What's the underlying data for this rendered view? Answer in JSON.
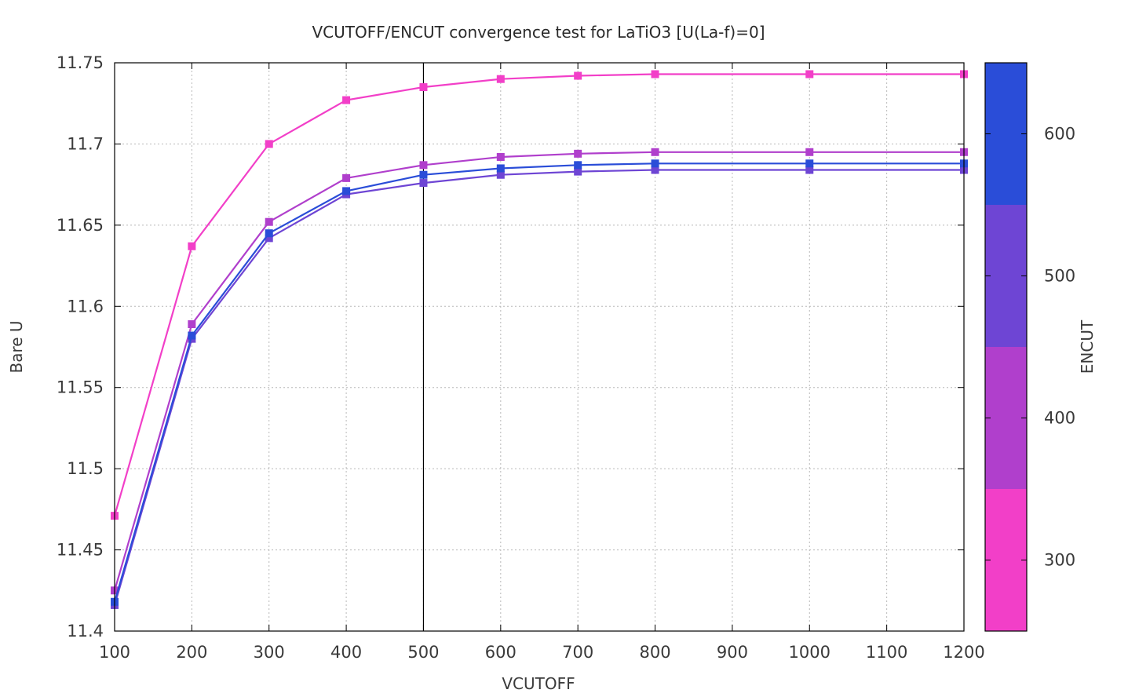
{
  "chart_data": {
    "type": "line",
    "title": "VCUTOFF/ENCUT convergence test for LaTiO3 [U(La-f)=0]",
    "xlabel": "VCUTOFF",
    "ylabel": "Bare U",
    "xlim": [
      100,
      1200
    ],
    "ylim": [
      11.4,
      11.75
    ],
    "xticks": [
      100,
      200,
      300,
      400,
      500,
      600,
      700,
      800,
      900,
      1000,
      1100,
      1200
    ],
    "xtick_labels": [
      "100",
      "200",
      "300",
      "400",
      "500",
      "600",
      "700",
      "800",
      "900",
      "1000",
      "1100",
      "1200"
    ],
    "yticks": [
      11.4,
      11.45,
      11.5,
      11.55,
      11.6,
      11.65,
      11.7,
      11.75
    ],
    "ytick_labels": [
      "11.4",
      "11.45",
      "11.5",
      "11.55",
      "11.6",
      "11.65",
      "11.7",
      "11.75"
    ],
    "grid": true,
    "vertical_line_x": 500,
    "x": [
      100,
      200,
      300,
      400,
      500,
      600,
      700,
      800,
      1000,
      1200
    ],
    "series": [
      {
        "encut": 300,
        "color": "#f23fc8",
        "values": [
          11.471,
          11.637,
          11.7,
          11.727,
          11.735,
          11.74,
          11.742,
          11.743,
          11.743,
          11.743
        ]
      },
      {
        "encut": 400,
        "color": "#b03fcc",
        "values": [
          11.425,
          11.589,
          11.652,
          11.679,
          11.687,
          11.692,
          11.694,
          11.695,
          11.695,
          11.695
        ]
      },
      {
        "encut": 500,
        "color": "#6e45d4",
        "values": [
          11.416,
          11.58,
          11.642,
          11.669,
          11.676,
          11.681,
          11.683,
          11.684,
          11.684,
          11.684
        ]
      },
      {
        "encut": 600,
        "color": "#2a4dd8",
        "values": [
          11.418,
          11.582,
          11.645,
          11.671,
          11.681,
          11.685,
          11.687,
          11.688,
          11.688,
          11.688
        ]
      }
    ],
    "colorbar": {
      "label": "ENCUT",
      "range": [
        250,
        650
      ],
      "ticks": [
        300,
        400,
        500,
        600
      ],
      "tick_labels": [
        "300",
        "400",
        "500",
        "600"
      ],
      "bands": [
        {
          "from": 250,
          "to": 350,
          "color": "#f23fc8"
        },
        {
          "from": 350,
          "to": 450,
          "color": "#b03fcc"
        },
        {
          "from": 450,
          "to": 550,
          "color": "#6e45d4"
        },
        {
          "from": 550,
          "to": 650,
          "color": "#2a4dd8"
        }
      ]
    }
  }
}
